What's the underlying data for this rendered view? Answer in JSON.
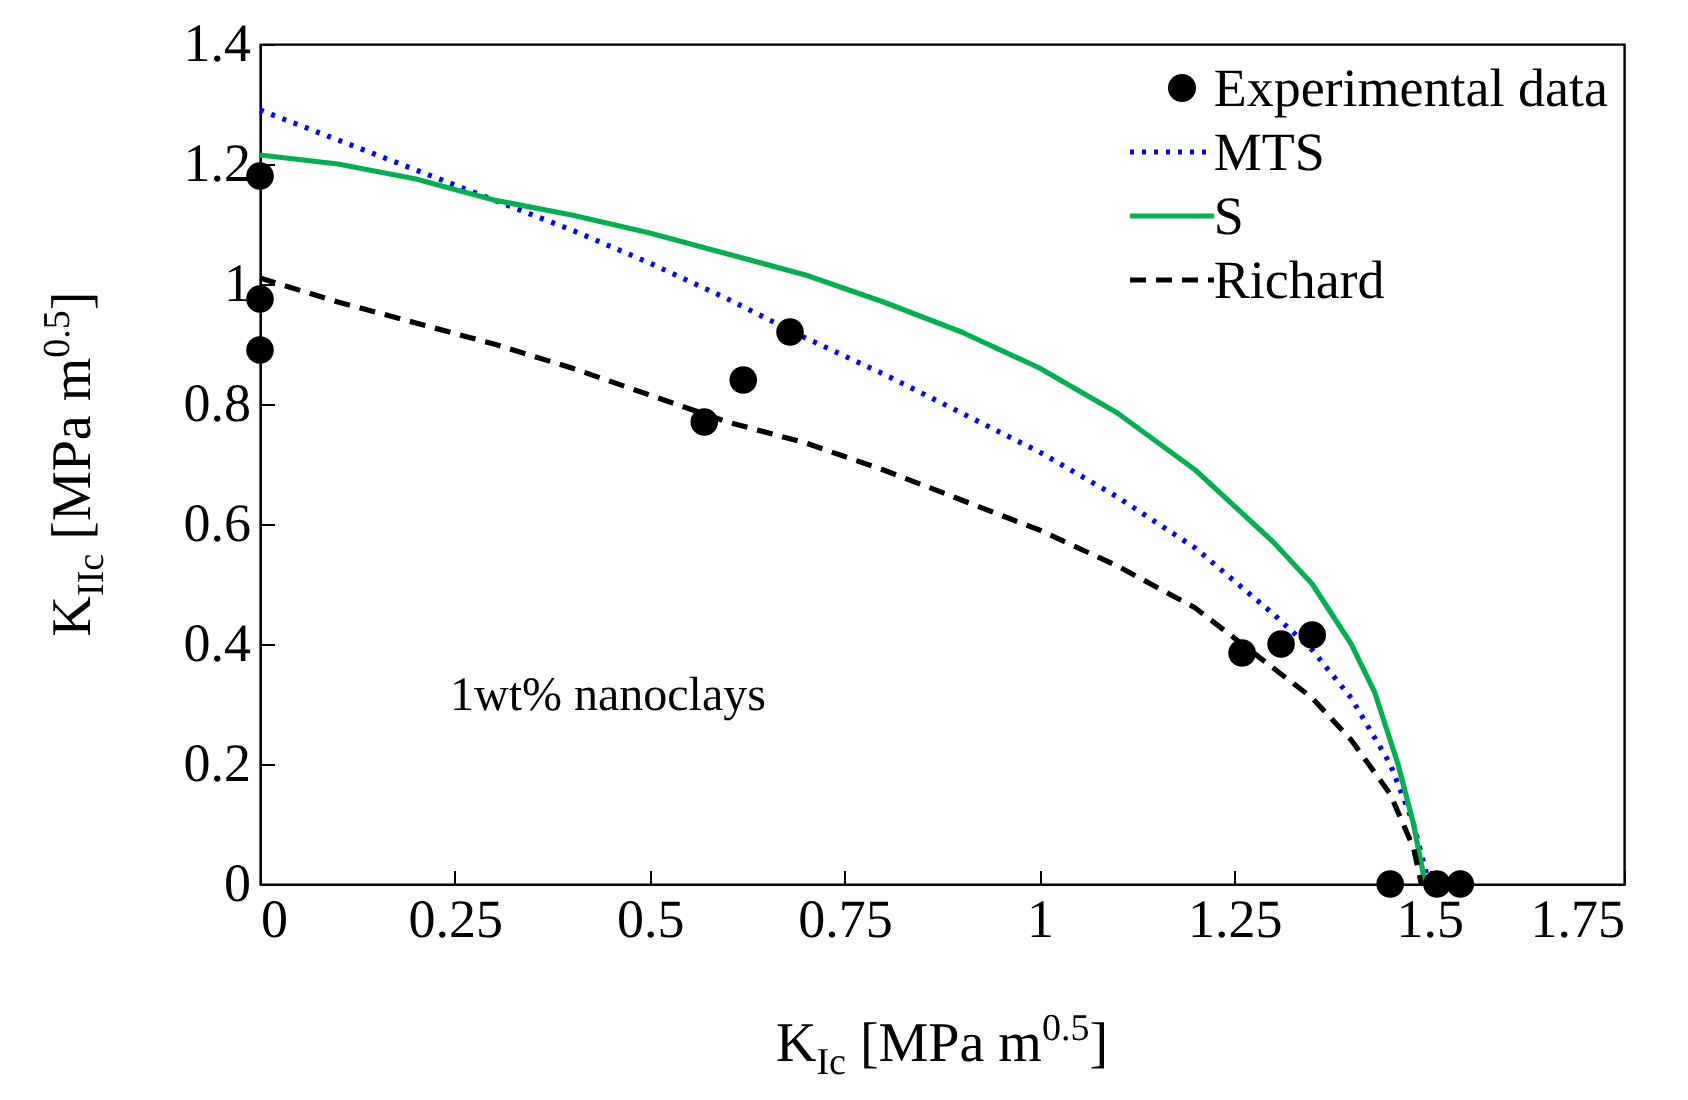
{
  "chart_data": {
    "type": "line",
    "xlabel": "K$_{Ic}$ [MPa m$^{0.5}$]",
    "ylabel": "K$_{IIc}$ [MPa m$^{0.5}$]",
    "xlim": [
      0,
      1.75
    ],
    "ylim": [
      0,
      1.4
    ],
    "xticks": [
      0,
      0.25,
      0.5,
      0.75,
      1,
      1.25,
      1.5,
      1.75
    ],
    "yticks": [
      0,
      0.2,
      0.4,
      0.6,
      0.8,
      1,
      1.2,
      1.4
    ],
    "grid": false,
    "legend": "top right",
    "annotations": [
      "1wt% nanoclays"
    ],
    "series": [
      {
        "name": "Experimental data",
        "type": "scatter",
        "marker": "circle",
        "color": "#000000",
        "x": [
          0,
          0,
          0,
          0.57,
          0.62,
          0.68,
          1.26,
          1.31,
          1.35,
          1.45,
          1.51,
          1.54
        ],
        "values": [
          1.18,
          0.975,
          0.89,
          0.77,
          0.84,
          0.92,
          0.385,
          0.4,
          0.415,
          0,
          0,
          0
        ]
      },
      {
        "name": "MTS",
        "type": "line",
        "line_style": "dotted",
        "color": "#0000ff",
        "x": [
          0,
          0.1,
          0.2,
          0.3,
          0.4,
          0.5,
          0.6,
          0.7,
          0.8,
          0.9,
          1,
          1.1,
          1.2,
          1.3,
          1.35,
          1.4,
          1.45,
          1.48,
          1.5
        ],
        "values": [
          1.29,
          1.24,
          1.19,
          1.14,
          1.09,
          1.035,
          0.975,
          0.91,
          0.85,
          0.785,
          0.72,
          0.645,
          0.56,
          0.45,
          0.39,
          0.31,
          0.2,
          0.1,
          0
        ]
      },
      {
        "name": "S",
        "type": "line",
        "line_style": "solid",
        "color": "#00b050",
        "x": [
          0,
          0.1,
          0.2,
          0.3,
          0.4,
          0.5,
          0.6,
          0.7,
          0.8,
          0.9,
          1,
          1.1,
          1.2,
          1.3,
          1.35,
          1.4,
          1.43,
          1.46,
          1.48,
          1.495
        ],
        "values": [
          1.215,
          1.2,
          1.175,
          1.14,
          1.115,
          1.085,
          1.05,
          1.015,
          0.97,
          0.92,
          0.86,
          0.785,
          0.69,
          0.57,
          0.5,
          0.4,
          0.32,
          0.2,
          0.1,
          0
        ]
      },
      {
        "name": "Richard",
        "type": "line",
        "line_style": "dashed",
        "color": "#000000",
        "x": [
          0,
          0.1,
          0.2,
          0.3,
          0.4,
          0.5,
          0.6,
          0.7,
          0.8,
          0.9,
          1,
          1.1,
          1.2,
          1.3,
          1.35,
          1.4,
          1.45,
          1.48,
          1.49
        ],
        "values": [
          1.01,
          0.97,
          0.935,
          0.9,
          0.86,
          0.815,
          0.77,
          0.735,
          0.69,
          0.64,
          0.59,
          0.53,
          0.46,
          0.36,
          0.31,
          0.24,
          0.15,
          0.06,
          0
        ]
      }
    ]
  }
}
